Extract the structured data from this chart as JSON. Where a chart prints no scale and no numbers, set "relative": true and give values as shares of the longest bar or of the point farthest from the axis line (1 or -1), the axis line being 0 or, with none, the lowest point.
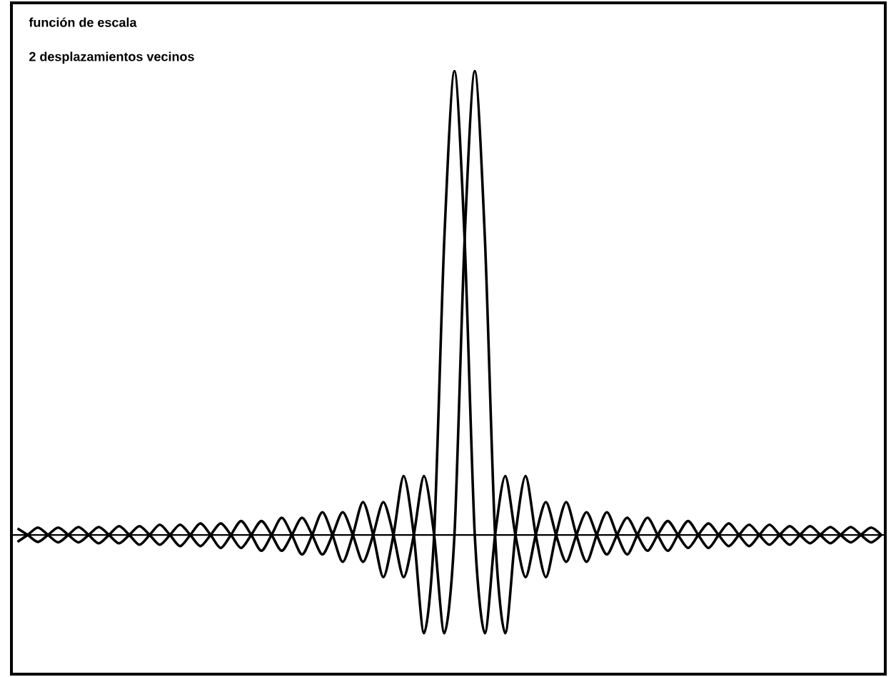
{
  "chart_data": {
    "type": "line",
    "title": "función de escala",
    "subtitle": "2 desplazamientos vecinos",
    "relative": true,
    "marker": "none",
    "line_style": "solid",
    "categories": [
      null,
      null,
      null,
      null,
      null,
      null,
      null,
      null,
      null,
      null,
      null,
      null,
      null,
      null,
      null,
      null,
      null,
      null,
      null,
      null,
      null,
      null,
      null,
      null,
      null,
      null,
      null,
      null,
      null,
      null,
      null,
      null,
      null,
      null,
      null,
      null,
      null,
      null,
      null,
      null,
      null,
      null,
      null,
      null,
      null,
      null,
      null,
      null,
      null,
      null,
      null,
      null,
      null,
      null,
      null,
      null,
      null,
      null,
      null,
      null,
      null,
      null,
      null,
      null,
      null,
      null,
      null,
      null,
      null,
      null,
      null,
      null,
      null,
      null,
      null,
      null,
      null,
      null,
      null,
      null,
      null,
      null,
      null,
      null,
      null,
      null
    ],
    "series": [
      {
        "color": "#000000",
        "values": [
          -0.015,
          0,
          0.016,
          0,
          -0.016,
          0,
          0.017,
          0,
          -0.018,
          0,
          0.019,
          0,
          -0.021,
          0,
          0.022,
          0,
          -0.024,
          0,
          0.025,
          0,
          -0.028,
          0,
          0.03,
          0,
          -0.034,
          0,
          0.037,
          0,
          -0.042,
          0,
          0.049,
          0,
          -0.058,
          0,
          0.071,
          0,
          -0.091,
          0,
          0.127,
          0,
          -0.212,
          0,
          0.637,
          1,
          0.637,
          0,
          -0.212,
          0,
          0.127,
          0,
          -0.091,
          0,
          0.071,
          0,
          -0.058,
          0,
          0.049,
          0,
          -0.042,
          0,
          0.037,
          0,
          -0.034,
          0,
          0.03,
          0,
          -0.028,
          0,
          0.025,
          0,
          -0.024,
          0,
          0.022,
          0,
          -0.021,
          0,
          0.019,
          0,
          -0.018,
          0,
          0.017,
          0,
          -0.016,
          0,
          0.016,
          0
        ]
      },
      {
        "color": "#000000",
        "values": [
          0.014,
          0,
          -0.015,
          0,
          0.016,
          0,
          -0.016,
          0,
          0.017,
          0,
          -0.018,
          0,
          0.019,
          0,
          -0.021,
          0,
          0.022,
          0,
          -0.024,
          0,
          0.025,
          0,
          -0.028,
          0,
          0.03,
          0,
          -0.034,
          0,
          0.037,
          0,
          -0.042,
          0,
          0.049,
          0,
          -0.058,
          0,
          0.071,
          0,
          -0.091,
          0,
          0.127,
          0,
          -0.212,
          0,
          0.637,
          1,
          0.637,
          0,
          -0.212,
          0,
          0.127,
          0,
          -0.091,
          0,
          0.071,
          0,
          -0.058,
          0,
          0.049,
          0,
          -0.042,
          0,
          0.037,
          0,
          -0.034,
          0,
          0.03,
          0,
          -0.028,
          0,
          0.025,
          0,
          -0.024,
          0,
          0.022,
          0,
          -0.021,
          0,
          0.019,
          0,
          -0.018,
          0,
          0.017,
          0,
          -0.016,
          0
        ]
      }
    ]
  }
}
